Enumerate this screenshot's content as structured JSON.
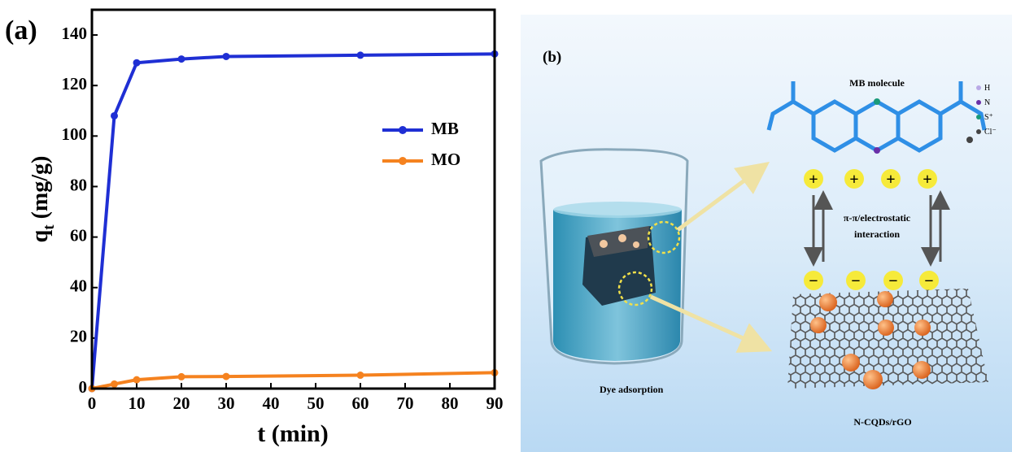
{
  "chart_data": {
    "type": "line",
    "panel_label": "(a)",
    "xlabel": "t (min)",
    "ylabel_parts": [
      "q",
      "t",
      " (mg/g)"
    ],
    "x": [
      0,
      5,
      10,
      20,
      30,
      60,
      90
    ],
    "series": [
      {
        "name": "MB",
        "color": "#1f2fd4",
        "values": [
          0,
          108,
          129,
          130.5,
          131.5,
          132,
          132.5
        ]
      },
      {
        "name": "MO",
        "color": "#f5821f",
        "values": [
          0,
          1.8,
          3.5,
          4.7,
          4.8,
          5.3,
          6.3
        ]
      }
    ],
    "xlim": [
      0,
      90
    ],
    "xticks": [
      0,
      10,
      20,
      30,
      40,
      50,
      60,
      70,
      80,
      90
    ],
    "ylim": [
      0,
      150
    ],
    "yticks": [
      0,
      20,
      40,
      60,
      80,
      100,
      120,
      140
    ],
    "grid": false,
    "legend": "right"
  },
  "diagram": {
    "panel_label": "(b)",
    "molecule_title": "MB molecule",
    "atom_legend": [
      "H",
      "N",
      "S⁺",
      "Cl⁻"
    ],
    "interaction": [
      "π-π/electrostatic",
      "interaction"
    ],
    "beaker_label": "Dye adsorption",
    "material_label": "N-CQDs/rGO",
    "plus": "+",
    "minus": "−"
  }
}
